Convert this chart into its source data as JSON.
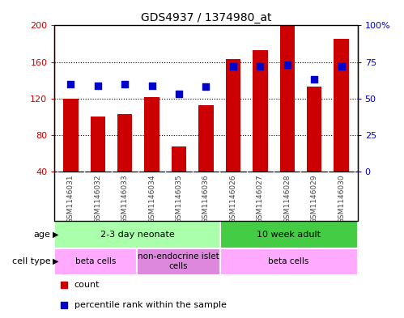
{
  "title": "GDS4937 / 1374980_at",
  "samples": [
    "GSM1146031",
    "GSM1146032",
    "GSM1146033",
    "GSM1146034",
    "GSM1146035",
    "GSM1146036",
    "GSM1146026",
    "GSM1146027",
    "GSM1146028",
    "GSM1146029",
    "GSM1146030"
  ],
  "counts": [
    120,
    100,
    103,
    122,
    68,
    113,
    163,
    173,
    200,
    133,
    185
  ],
  "percentile_ranks": [
    60,
    59,
    60,
    59,
    53,
    58,
    72,
    72,
    73,
    63,
    72
  ],
  "bar_color": "#cc0000",
  "dot_color": "#0000cc",
  "ylim_left": [
    40,
    200
  ],
  "ylim_right": [
    0,
    100
  ],
  "yticks_left": [
    40,
    80,
    120,
    160,
    200
  ],
  "yticks_right": [
    0,
    25,
    50,
    75,
    100
  ],
  "ytick_labels_left": [
    "40",
    "80",
    "120",
    "160",
    "200"
  ],
  "ytick_labels_right": [
    "0",
    "25",
    "50",
    "75",
    "100%"
  ],
  "age_groups": [
    {
      "label": "2-3 day neonate",
      "start": 0,
      "end": 6,
      "color": "#aaffaa"
    },
    {
      "label": "10 week adult",
      "start": 6,
      "end": 11,
      "color": "#44cc44"
    }
  ],
  "cell_type_groups": [
    {
      "label": "beta cells",
      "start": 0,
      "end": 3,
      "color": "#ffaaff"
    },
    {
      "label": "non-endocrine islet\ncells",
      "start": 3,
      "end": 6,
      "color": "#dd88dd"
    },
    {
      "label": "beta cells",
      "start": 6,
      "end": 11,
      "color": "#ffaaff"
    }
  ],
  "legend_items": [
    {
      "color": "#cc0000",
      "label": "count"
    },
    {
      "color": "#0000cc",
      "label": "percentile rank within the sample"
    }
  ],
  "age_label": "age",
  "cell_type_label": "cell type",
  "bar_width": 0.55,
  "dot_size": 35,
  "grid_color": "black",
  "grid_linestyle": "dotted",
  "tick_color_left": "#cc0000",
  "tick_color_right": "#0000cc",
  "xlabel_color": "#444444",
  "bg_plot": "#ffffff",
  "bg_xlabel": "#cccccc",
  "border_color": "#000000"
}
